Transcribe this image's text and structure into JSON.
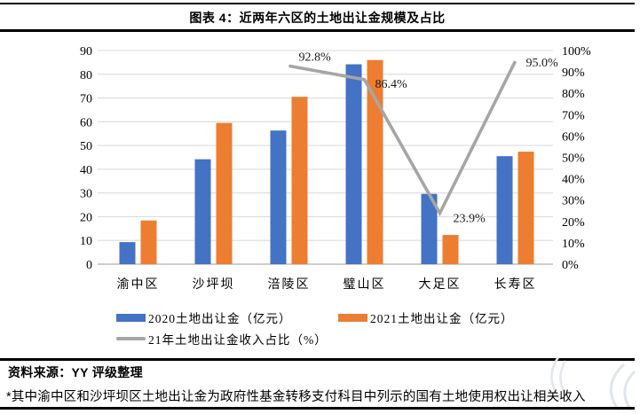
{
  "figure": {
    "title": "图表 4：近两年六区的土地出让金规模及占比",
    "source": "资料来源：YY 评级整理",
    "footnote": "*其中渝中区和沙坪坝区土地出让金为政府性基金转移支付科目中列示的国有土地使用权出让相关收入"
  },
  "chart_data": {
    "type": "bar",
    "subtype": "grouped bars with secondary-axis line (dual axis combo)",
    "title": "近两年六区的土地出让金规模及占比",
    "categories": [
      "渝中区",
      "沙坪坝",
      "涪陵区",
      "璧山区",
      "大足区",
      "长寿区"
    ],
    "series": [
      {
        "key": "2020",
        "name": "2020土地出让金（亿元）",
        "type": "bar",
        "axis": "left",
        "color": "#4472C4",
        "values": [
          9.3,
          44.2,
          56.3,
          84.2,
          29.6,
          45.5
        ]
      },
      {
        "key": "2021",
        "name": "2021土地出让金（亿元）",
        "type": "bar",
        "axis": "left",
        "color": "#ED7D31",
        "values": [
          18.4,
          59.5,
          70.5,
          86.0,
          12.3,
          47.4
        ]
      },
      {
        "key": "ratio",
        "name": "21年土地出让金收入占比（%）",
        "type": "line",
        "axis": "right",
        "color": "#A6A6A6",
        "values": [
          null,
          null,
          92.8,
          86.4,
          23.9,
          95.0
        ],
        "labels": [
          "92.8%",
          "86.4%",
          "23.9%",
          "95.0%"
        ]
      }
    ],
    "left_axis": {
      "range": [
        0,
        90
      ],
      "ticks": [
        0,
        10,
        20,
        30,
        40,
        50,
        60,
        70,
        80,
        90
      ]
    },
    "right_axis": {
      "range": [
        0,
        100
      ],
      "ticks": [
        "0%",
        "10%",
        "20%",
        "30%",
        "40%",
        "50%",
        "60%",
        "70%",
        "80%",
        "90%",
        "100%"
      ]
    },
    "grid": true,
    "grid_color": "#DCDCDC",
    "axis_color": "#C6C6C6",
    "legend_position": "bottom"
  }
}
